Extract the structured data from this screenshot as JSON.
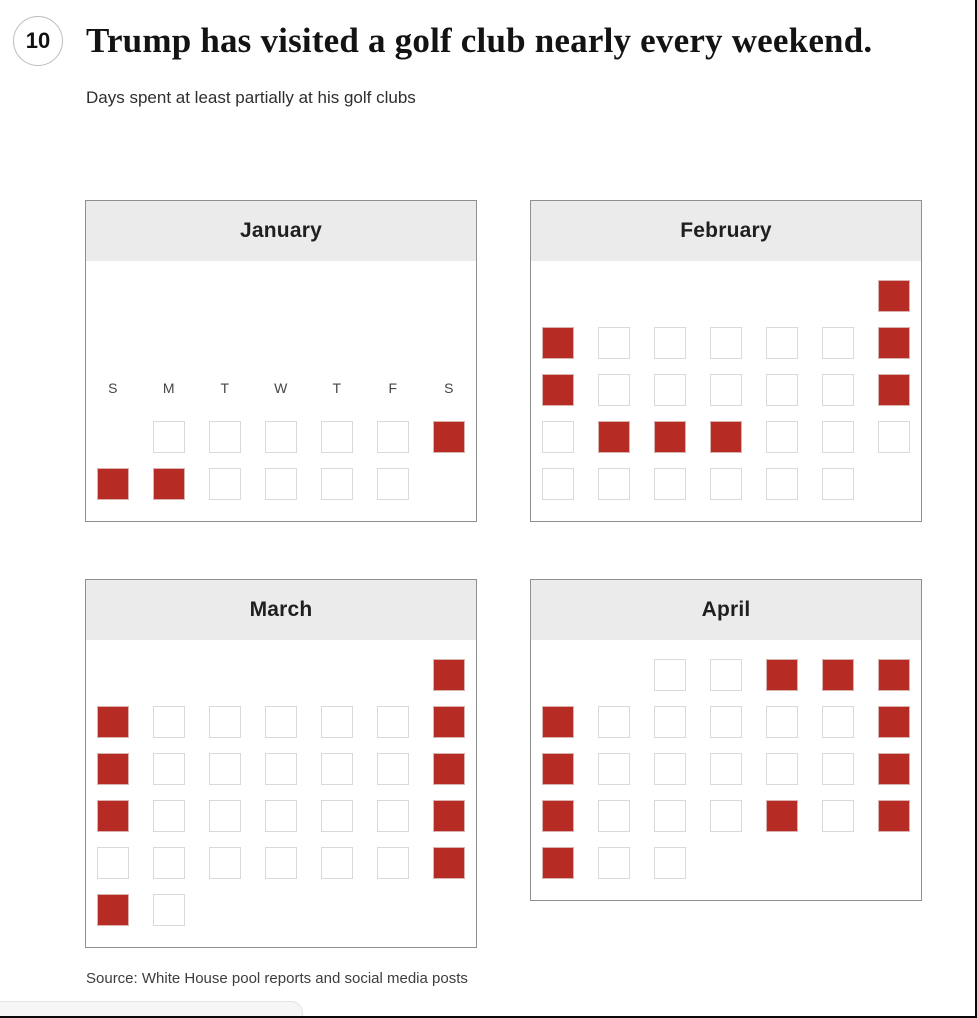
{
  "page": {
    "badge": "10",
    "title": "Trump has visited a golf club nearly every weekend.",
    "subtitle": "Days spent at least partially at his golf clubs",
    "source": "Source: White House pool reports and social media posts"
  },
  "colors": {
    "golf_red": "#b62b24",
    "month_header_bg": "#ebebeb",
    "panel_border": "#8f8f8f",
    "cell_border": "#d9d9d9"
  },
  "chart_data": {
    "type": "heatmap",
    "title": "Trump has visited a golf club nearly every weekend.",
    "subtitle": "Days spent at least partially at his golf clubs",
    "layout": "four monthly calendar grids, 7 columns Sunday through Saturday, red filled square = golf day, empty outlined square = no golf, missing square = date outside range shown",
    "day_labels": [
      "S",
      "M",
      "T",
      "W",
      "T",
      "F",
      "S"
    ],
    "cell_encoding": {
      "1": "golf club day (red)",
      "0": "no visit (empty square)",
      "null": "no square shown"
    },
    "months": [
      {
        "name": "January",
        "show_day_labels": true,
        "weeks": [
          [
            null,
            0,
            0,
            0,
            0,
            0,
            1
          ],
          [
            1,
            1,
            0,
            0,
            0,
            0,
            null
          ]
        ]
      },
      {
        "name": "February",
        "show_day_labels": false,
        "weeks": [
          [
            null,
            null,
            null,
            null,
            null,
            null,
            1
          ],
          [
            1,
            0,
            0,
            0,
            0,
            0,
            1
          ],
          [
            1,
            0,
            0,
            0,
            0,
            0,
            1
          ],
          [
            0,
            1,
            1,
            1,
            0,
            0,
            0
          ],
          [
            0,
            0,
            0,
            0,
            0,
            0,
            null
          ]
        ]
      },
      {
        "name": "March",
        "show_day_labels": false,
        "weeks": [
          [
            null,
            null,
            null,
            null,
            null,
            null,
            1
          ],
          [
            1,
            0,
            0,
            0,
            0,
            0,
            1
          ],
          [
            1,
            0,
            0,
            0,
            0,
            0,
            1
          ],
          [
            1,
            0,
            0,
            0,
            0,
            0,
            1
          ],
          [
            0,
            0,
            0,
            0,
            0,
            0,
            1
          ],
          [
            1,
            0,
            null,
            null,
            null,
            null,
            null
          ]
        ]
      },
      {
        "name": "April",
        "show_day_labels": false,
        "weeks": [
          [
            null,
            null,
            0,
            0,
            1,
            1,
            1
          ],
          [
            1,
            0,
            0,
            0,
            0,
            0,
            1
          ],
          [
            1,
            0,
            0,
            0,
            0,
            0,
            1
          ],
          [
            1,
            0,
            0,
            0,
            1,
            0,
            1
          ],
          [
            1,
            0,
            0,
            null,
            null,
            null,
            null
          ]
        ]
      }
    ]
  }
}
